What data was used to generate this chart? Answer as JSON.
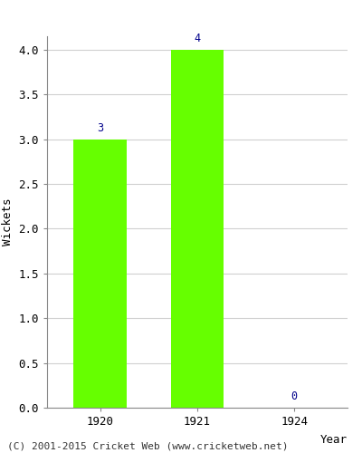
{
  "years": [
    "1920",
    "1921",
    "1924"
  ],
  "values": [
    3,
    4,
    0
  ],
  "bar_color": "#66ff00",
  "bar_edgecolor": "#66ff00",
  "xlabel": "Year",
  "ylabel": "Wickets",
  "ylim": [
    0,
    4.15
  ],
  "yticks": [
    0.0,
    0.5,
    1.0,
    1.5,
    2.0,
    2.5,
    3.0,
    3.5,
    4.0
  ],
  "annotation_color": "#00008b",
  "annotation_fontsize": 8.5,
  "axis_label_fontsize": 9,
  "tick_fontsize": 9,
  "footer_text": "(C) 2001-2015 Cricket Web (www.cricketweb.net)",
  "footer_fontsize": 8,
  "background_color": "#ffffff",
  "grid_color": "#d0d0d0"
}
